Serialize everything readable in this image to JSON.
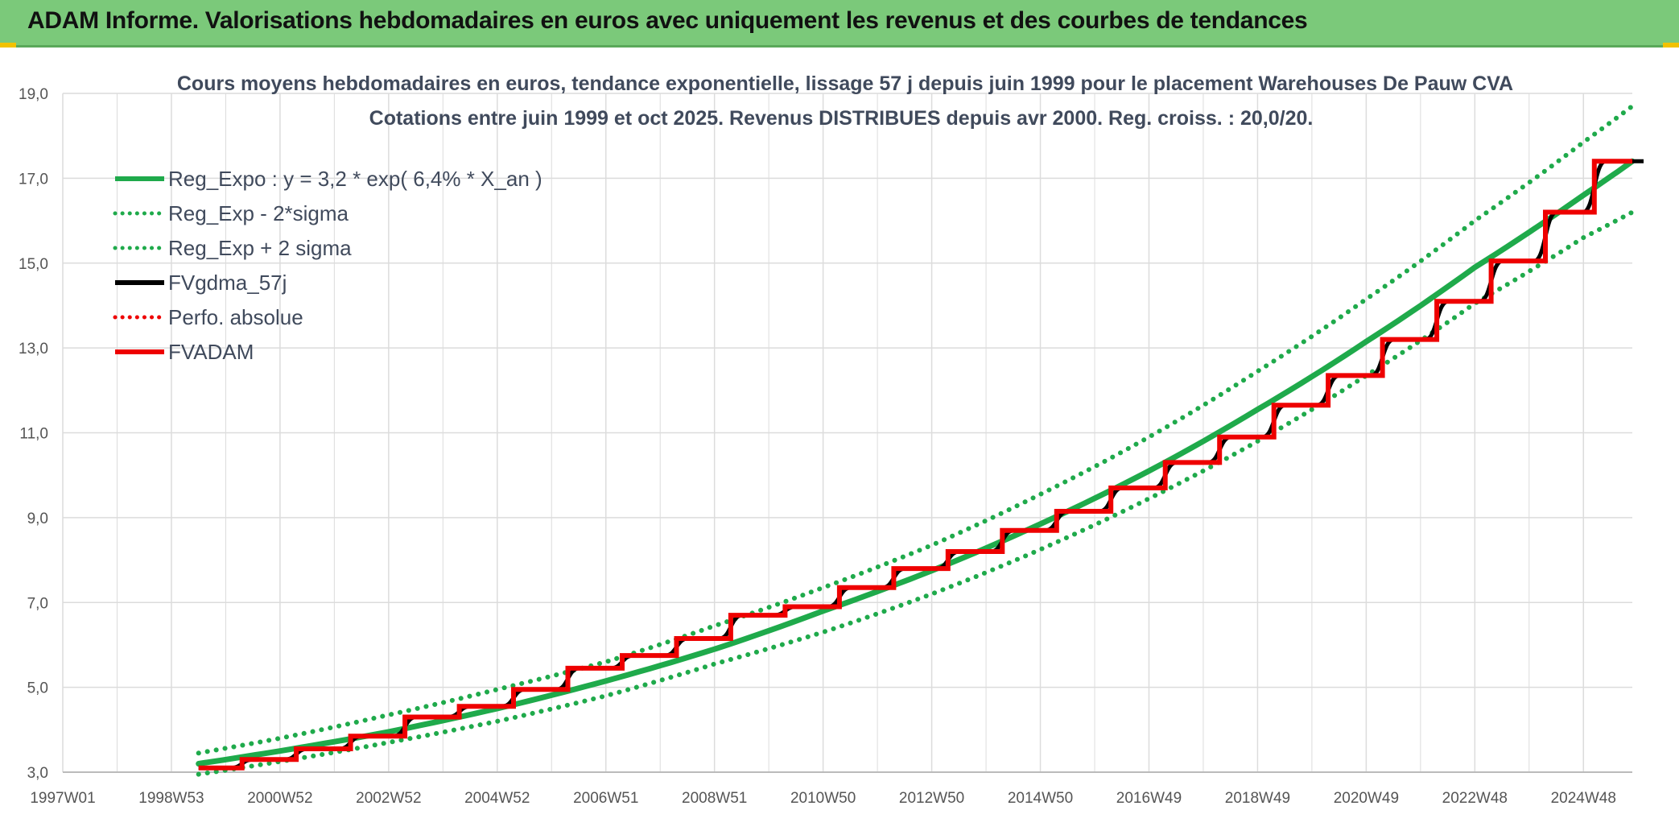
{
  "header": {
    "title": "ADAM Informe. Valorisations hebdomadaires en euros avec uniquement les revenus et des courbes de tendances"
  },
  "colors": {
    "header_bg": "#7bc97a",
    "reg_expo": "#1faa4b",
    "fvgdma": "#000000",
    "fvadam": "#ee0000",
    "perfo": "#ee0000",
    "grid": "#dcdcdc"
  },
  "chart_data": {
    "type": "line",
    "title": "Cours moyens hebdomadaires en euros, tendance exponentielle, lissage 57 j depuis juin 1999 pour le placement Warehouses De Pauw CVA",
    "subtitle": "Cotations entre juin 1999 et oct 2025. Revenus DISTRIBUES depuis avr 2000. Reg. croiss. : 20,0/20.",
    "xlabel": "",
    "ylabel": "",
    "ylim": [
      3.0,
      19.0
    ],
    "xlim": [
      1997.0,
      2025.9
    ],
    "y_ticks": [
      3.0,
      5.0,
      7.0,
      9.0,
      11.0,
      13.0,
      15.0,
      17.0,
      19.0
    ],
    "y_tick_labels": [
      "3,0",
      "5,0",
      "7,0",
      "9,0",
      "11,0",
      "13,0",
      "15,0",
      "17,0",
      "19,0"
    ],
    "x_tick_labels": [
      "1997W01",
      "1998W53",
      "2000W52",
      "2002W52",
      "2004W52",
      "2006W51",
      "2008W51",
      "2010W50",
      "2012W50",
      "2014W50",
      "2016W49",
      "2018W49",
      "2020W49",
      "2022W48",
      "2024W48"
    ],
    "grid": true,
    "legend_position": "top-left",
    "legend": [
      {
        "label": "Reg_Expo : y = 3,2 * exp( 6,4% *  X_an )",
        "style": "solid",
        "color": "#1faa4b"
      },
      {
        "label": "Reg_Exp - 2*sigma",
        "style": "dotted",
        "color": "#1faa4b"
      },
      {
        "label": "Reg_Exp + 2 sigma",
        "style": "dotted",
        "color": "#1faa4b"
      },
      {
        "label": "FVgdma_57j",
        "style": "solid",
        "color": "#000000"
      },
      {
        "label": "Perfo. absolue",
        "style": "dotted",
        "color": "#ee0000"
      },
      {
        "label": "FVADAM",
        "style": "solid",
        "color": "#ee0000"
      }
    ],
    "series": [
      {
        "name": "Reg_Expo : y = 3,2 * exp( 6,4% *  X_an )",
        "x": [
          1999.5,
          2001,
          2003,
          2005,
          2007,
          2009,
          2011,
          2013,
          2015,
          2017,
          2019,
          2021,
          2023,
          2025,
          2025.9
        ],
        "values": [
          3.2,
          3.5,
          3.95,
          4.5,
          5.15,
          5.9,
          6.8,
          7.75,
          8.85,
          10.1,
          11.55,
          13.15,
          14.9,
          16.6,
          17.4
        ]
      },
      {
        "name": "Reg_Exp - 2*sigma",
        "x": [
          1999.5,
          2001,
          2003,
          2005,
          2007,
          2009,
          2011,
          2013,
          2015,
          2017,
          2019,
          2021,
          2023,
          2025,
          2025.9
        ],
        "values": [
          2.95,
          3.25,
          3.7,
          4.2,
          4.8,
          5.55,
          6.3,
          7.2,
          8.25,
          9.45,
          10.8,
          12.35,
          14.05,
          15.6,
          16.2
        ]
      },
      {
        "name": "Reg_Exp + 2 sigma",
        "x": [
          1999.5,
          2001,
          2003,
          2005,
          2007,
          2009,
          2011,
          2013,
          2015,
          2017,
          2019,
          2021,
          2023,
          2025,
          2025.9
        ],
        "values": [
          3.45,
          3.8,
          4.35,
          4.95,
          5.6,
          6.45,
          7.35,
          8.35,
          9.55,
          10.9,
          12.45,
          14.15,
          16.0,
          17.85,
          18.7
        ]
      },
      {
        "name": "FVADAM",
        "step": true,
        "x": [
          1999.5,
          2000.3,
          2001.3,
          2002.3,
          2003.3,
          2004.3,
          2005.3,
          2006.3,
          2007.3,
          2008.3,
          2009.3,
          2010.3,
          2011.3,
          2012.3,
          2013.3,
          2014.3,
          2015.3,
          2016.3,
          2017.3,
          2018.3,
          2019.3,
          2020.3,
          2021.3,
          2022.3,
          2023.3,
          2024.3,
          2025.2,
          2025.9
        ],
        "values": [
          3.1,
          3.3,
          3.55,
          3.85,
          4.3,
          4.55,
          4.95,
          5.45,
          5.75,
          6.15,
          6.7,
          6.9,
          7.35,
          7.8,
          8.2,
          8.7,
          9.15,
          9.7,
          10.3,
          10.9,
          11.65,
          12.35,
          13.2,
          14.1,
          15.05,
          16.2,
          17.4,
          17.4
        ]
      },
      {
        "name": "FVgdma_57j",
        "smooth_of": "FVADAM"
      },
      {
        "name": "Perfo. absolue",
        "values": []
      }
    ]
  }
}
